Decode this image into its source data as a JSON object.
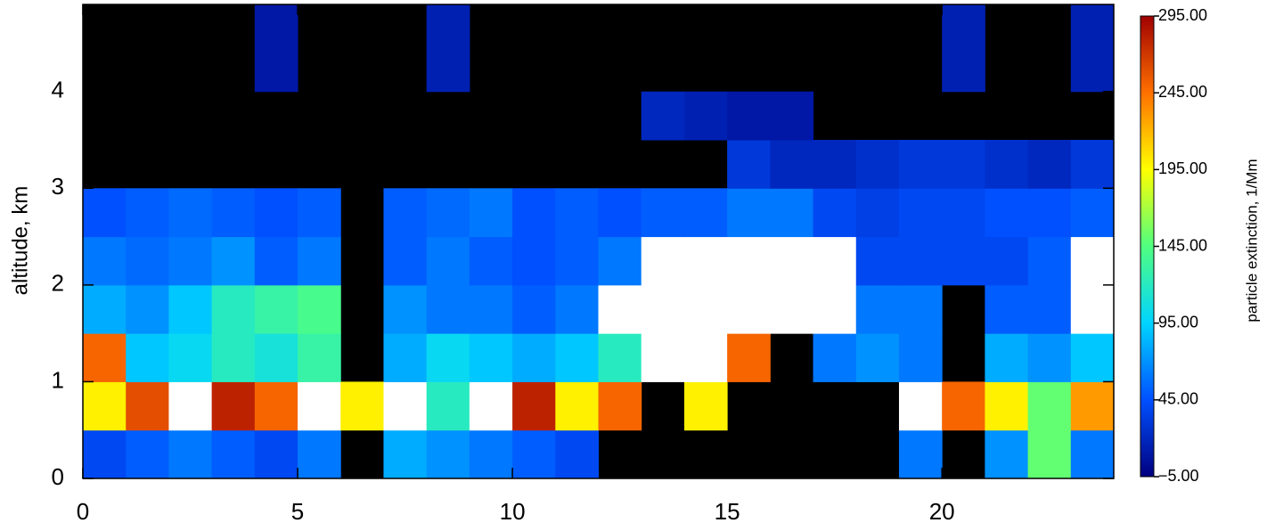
{
  "chart_data": {
    "type": "heatmap",
    "x_label": null,
    "y_label": "altitude, km",
    "colorbar_label": "particle extinction, 1/Mm",
    "xlim": [
      0,
      24
    ],
    "ylim": [
      0,
      4.9
    ],
    "xticks": [
      0,
      5,
      10,
      15,
      20
    ],
    "yticks": [
      0,
      1,
      2,
      3,
      4
    ],
    "x_bins": [
      0,
      1,
      2,
      3,
      4,
      5,
      6,
      7,
      8,
      9,
      10,
      11,
      12,
      13,
      14,
      15,
      16,
      17,
      18,
      19,
      20,
      21,
      22,
      23,
      24
    ],
    "y_bins": [
      0,
      0.5,
      1,
      1.5,
      2,
      2.5,
      3,
      3.5,
      4,
      4.9
    ],
    "clim": [
      -5,
      295
    ],
    "cticks": [
      {
        "value": -5,
        "label": "−5.00"
      },
      {
        "value": 45,
        "label": "45.00"
      },
      {
        "value": 95,
        "label": "95.00"
      },
      {
        "value": 145,
        "label": "145.00"
      },
      {
        "value": 195,
        "label": "195.00"
      },
      {
        "value": 245,
        "label": "245.00"
      },
      {
        "value": 295,
        "label": "295.00"
      }
    ],
    "colormap": [
      "#00007f",
      "#0050ff",
      "#00d4ff",
      "#50ff80",
      "#ffff00",
      "#ff7000",
      "#a00000"
    ],
    "over_color": "#ffffff",
    "missing_color": "#000000",
    "values": [
      [
        40,
        50,
        60,
        50,
        40,
        60,
        null,
        80,
        70,
        60,
        50,
        40,
        null,
        null,
        null,
        null,
        null,
        null,
        null,
        60,
        null,
        70,
        150,
        60
      ],
      [
        200,
        260,
        300,
        280,
        250,
        320,
        200,
        320,
        120,
        300,
        280,
        200,
        250,
        null,
        200,
        null,
        null,
        null,
        null,
        300,
        250,
        200,
        150,
        230
      ],
      [
        250,
        90,
        100,
        120,
        110,
        130,
        null,
        80,
        100,
        90,
        80,
        90,
        120,
        300,
        320,
        250,
        null,
        60,
        70,
        60,
        null,
        80,
        70,
        90
      ],
      [
        80,
        70,
        90,
        120,
        130,
        140,
        null,
        70,
        60,
        60,
        50,
        60,
        320,
        320,
        320,
        300,
        320,
        320,
        60,
        60,
        null,
        50,
        50,
        320
      ],
      [
        60,
        55,
        60,
        70,
        50,
        60,
        null,
        50,
        60,
        50,
        45,
        50,
        60,
        320,
        300,
        320,
        320,
        300,
        40,
        40,
        40,
        40,
        50,
        320
      ],
      [
        45,
        50,
        55,
        50,
        45,
        50,
        null,
        50,
        55,
        60,
        45,
        50,
        45,
        50,
        50,
        60,
        60,
        40,
        35,
        40,
        40,
        45,
        45,
        50
      ],
      [
        null,
        null,
        null,
        null,
        null,
        null,
        null,
        null,
        null,
        null,
        null,
        null,
        null,
        null,
        null,
        30,
        20,
        20,
        25,
        30,
        30,
        25,
        20,
        30
      ],
      [
        null,
        null,
        null,
        null,
        null,
        null,
        null,
        null,
        null,
        null,
        null,
        null,
        null,
        20,
        15,
        10,
        10,
        null,
        null,
        null,
        null,
        null,
        null,
        null
      ],
      [
        null,
        null,
        null,
        null,
        10,
        null,
        null,
        null,
        15,
        null,
        null,
        null,
        null,
        null,
        null,
        null,
        null,
        null,
        null,
        null,
        15,
        null,
        null,
        15
      ]
    ]
  }
}
